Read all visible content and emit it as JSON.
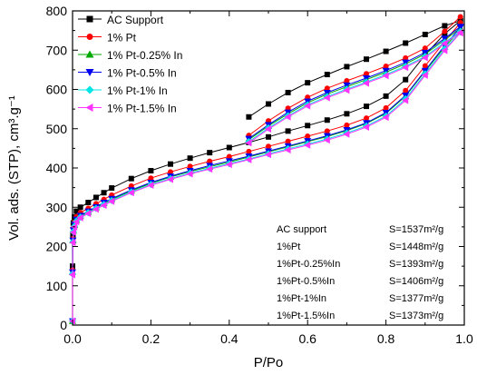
{
  "chart_data": {
    "type": "scatter",
    "xlabel": "P/Po",
    "ylabel": "Vol. ads. (STP), cm³.g⁻¹",
    "xlim": [
      0.0,
      1.0
    ],
    "ylim": [
      0,
      800
    ],
    "xticks": [
      "0.0",
      "0.2",
      "0.4",
      "0.6",
      "0.8",
      "1.0"
    ],
    "yticks": [
      "0",
      "100",
      "200",
      "300",
      "400",
      "500",
      "600",
      "700",
      "800"
    ],
    "grid": false,
    "legend_position": "top-left",
    "series": [
      {
        "name": "AC Support",
        "color": "#000000",
        "marker": "square",
        "adsorption": [
          [
            0.0,
            10
          ],
          [
            0.0,
            150
          ],
          [
            0.001,
            230
          ],
          [
            0.002,
            260
          ],
          [
            0.005,
            275
          ],
          [
            0.01,
            290
          ],
          [
            0.02,
            300
          ],
          [
            0.04,
            312
          ],
          [
            0.06,
            325
          ],
          [
            0.08,
            337
          ],
          [
            0.1,
            349
          ],
          [
            0.15,
            373
          ],
          [
            0.2,
            393
          ],
          [
            0.25,
            410
          ],
          [
            0.3,
            425
          ],
          [
            0.35,
            439
          ],
          [
            0.4,
            452
          ],
          [
            0.45,
            465
          ],
          [
            0.5,
            479
          ],
          [
            0.55,
            494
          ],
          [
            0.6,
            508
          ],
          [
            0.65,
            522
          ],
          [
            0.7,
            538
          ],
          [
            0.75,
            557
          ],
          [
            0.8,
            583
          ],
          [
            0.85,
            625
          ],
          [
            0.9,
            688
          ],
          [
            0.95,
            742
          ],
          [
            0.99,
            775
          ]
        ],
        "desorption": [
          [
            0.99,
            775
          ],
          [
            0.95,
            762
          ],
          [
            0.9,
            740
          ],
          [
            0.85,
            718
          ],
          [
            0.8,
            697
          ],
          [
            0.75,
            677
          ],
          [
            0.7,
            658
          ],
          [
            0.65,
            638
          ],
          [
            0.6,
            617
          ],
          [
            0.55,
            592
          ],
          [
            0.5,
            563
          ],
          [
            0.45,
            530
          ]
        ]
      },
      {
        "name": "1% Pt",
        "color": "#ff0000",
        "marker": "circle",
        "adsorption": [
          [
            0.0,
            10
          ],
          [
            0.0,
            140
          ],
          [
            0.001,
            220
          ],
          [
            0.002,
            248
          ],
          [
            0.005,
            262
          ],
          [
            0.01,
            276
          ],
          [
            0.02,
            286
          ],
          [
            0.04,
            297
          ],
          [
            0.06,
            309
          ],
          [
            0.08,
            320
          ],
          [
            0.1,
            331
          ],
          [
            0.15,
            354
          ],
          [
            0.2,
            374
          ],
          [
            0.25,
            390
          ],
          [
            0.3,
            404
          ],
          [
            0.35,
            417
          ],
          [
            0.4,
            429
          ],
          [
            0.45,
            442
          ],
          [
            0.5,
            455
          ],
          [
            0.55,
            468
          ],
          [
            0.6,
            481
          ],
          [
            0.65,
            494
          ],
          [
            0.7,
            509
          ],
          [
            0.75,
            527
          ],
          [
            0.8,
            553
          ],
          [
            0.85,
            597
          ],
          [
            0.9,
            660
          ],
          [
            0.95,
            722
          ],
          [
            0.99,
            770
          ]
        ],
        "desorption": [
          [
            0.99,
            785
          ],
          [
            0.95,
            748
          ],
          [
            0.9,
            705
          ],
          [
            0.85,
            680
          ],
          [
            0.8,
            659
          ],
          [
            0.75,
            640
          ],
          [
            0.7,
            622
          ],
          [
            0.65,
            603
          ],
          [
            0.6,
            580
          ],
          [
            0.55,
            552
          ],
          [
            0.5,
            520
          ],
          [
            0.45,
            483
          ]
        ]
      },
      {
        "name": "1% Pt-0.25% In",
        "color": "#00aa00",
        "marker": "triangle-up",
        "adsorption": [
          [
            0.0,
            10
          ],
          [
            0.0,
            135
          ],
          [
            0.001,
            215
          ],
          [
            0.002,
            240
          ],
          [
            0.005,
            254
          ],
          [
            0.01,
            267
          ],
          [
            0.02,
            277
          ],
          [
            0.04,
            288
          ],
          [
            0.06,
            299
          ],
          [
            0.08,
            310
          ],
          [
            0.1,
            320
          ],
          [
            0.15,
            342
          ],
          [
            0.2,
            361
          ],
          [
            0.25,
            377
          ],
          [
            0.3,
            391
          ],
          [
            0.35,
            403
          ],
          [
            0.4,
            415
          ],
          [
            0.45,
            428
          ],
          [
            0.5,
            441
          ],
          [
            0.55,
            454
          ],
          [
            0.6,
            467
          ],
          [
            0.65,
            480
          ],
          [
            0.7,
            495
          ],
          [
            0.75,
            513
          ],
          [
            0.8,
            539
          ],
          [
            0.85,
            583
          ],
          [
            0.9,
            646
          ],
          [
            0.95,
            708
          ],
          [
            0.99,
            752
          ]
        ],
        "desorption": [
          [
            0.99,
            756
          ],
          [
            0.95,
            726
          ],
          [
            0.9,
            690
          ],
          [
            0.85,
            665
          ],
          [
            0.8,
            644
          ],
          [
            0.75,
            625
          ],
          [
            0.7,
            607
          ],
          [
            0.65,
            588
          ],
          [
            0.6,
            566
          ],
          [
            0.55,
            538
          ],
          [
            0.5,
            507
          ],
          [
            0.45,
            472
          ]
        ]
      },
      {
        "name": "1% Pt-0.5% In",
        "color": "#0000ee",
        "marker": "triangle-down",
        "adsorption": [
          [
            0.0,
            10
          ],
          [
            0.0,
            135
          ],
          [
            0.001,
            216
          ],
          [
            0.002,
            242
          ],
          [
            0.005,
            256
          ],
          [
            0.01,
            269
          ],
          [
            0.02,
            279
          ],
          [
            0.04,
            290
          ],
          [
            0.06,
            301
          ],
          [
            0.08,
            312
          ],
          [
            0.1,
            322
          ],
          [
            0.15,
            344
          ],
          [
            0.2,
            363
          ],
          [
            0.25,
            379
          ],
          [
            0.3,
            393
          ],
          [
            0.35,
            406
          ],
          [
            0.4,
            418
          ],
          [
            0.45,
            430
          ],
          [
            0.5,
            443
          ],
          [
            0.55,
            456
          ],
          [
            0.6,
            469
          ],
          [
            0.65,
            482
          ],
          [
            0.7,
            497
          ],
          [
            0.75,
            515
          ],
          [
            0.8,
            541
          ],
          [
            0.85,
            585
          ],
          [
            0.9,
            648
          ],
          [
            0.95,
            712
          ],
          [
            0.99,
            758
          ]
        ],
        "desorption": [
          [
            0.99,
            760
          ],
          [
            0.95,
            730
          ],
          [
            0.9,
            694
          ],
          [
            0.85,
            669
          ],
          [
            0.8,
            648
          ],
          [
            0.75,
            629
          ],
          [
            0.7,
            611
          ],
          [
            0.65,
            592
          ],
          [
            0.6,
            570
          ],
          [
            0.55,
            542
          ],
          [
            0.5,
            510
          ],
          [
            0.45,
            475
          ]
        ]
      },
      {
        "name": "1% Pt-1% In",
        "color": "#00e5e5",
        "marker": "diamond",
        "adsorption": [
          [
            0.0,
            10
          ],
          [
            0.0,
            130
          ],
          [
            0.001,
            212
          ],
          [
            0.002,
            238
          ],
          [
            0.005,
            252
          ],
          [
            0.01,
            265
          ],
          [
            0.02,
            275
          ],
          [
            0.04,
            286
          ],
          [
            0.06,
            297
          ],
          [
            0.08,
            307
          ],
          [
            0.1,
            317
          ],
          [
            0.15,
            339
          ],
          [
            0.2,
            358
          ],
          [
            0.25,
            373
          ],
          [
            0.3,
            387
          ],
          [
            0.35,
            399
          ],
          [
            0.4,
            411
          ],
          [
            0.45,
            423
          ],
          [
            0.5,
            436
          ],
          [
            0.55,
            449
          ],
          [
            0.6,
            461
          ],
          [
            0.65,
            474
          ],
          [
            0.7,
            489
          ],
          [
            0.75,
            507
          ],
          [
            0.8,
            532
          ],
          [
            0.85,
            576
          ],
          [
            0.9,
            640
          ],
          [
            0.95,
            703
          ],
          [
            0.99,
            746
          ]
        ],
        "desorption": [
          [
            0.99,
            748
          ],
          [
            0.95,
            720
          ],
          [
            0.9,
            684
          ],
          [
            0.85,
            659
          ],
          [
            0.8,
            638
          ],
          [
            0.75,
            619
          ],
          [
            0.7,
            601
          ],
          [
            0.65,
            582
          ],
          [
            0.6,
            561
          ],
          [
            0.55,
            533
          ],
          [
            0.5,
            502
          ],
          [
            0.45,
            467
          ]
        ]
      },
      {
        "name": "1% Pt-1.5% In",
        "color": "#ff33ff",
        "marker": "triangle-left",
        "adsorption": [
          [
            0.0,
            10
          ],
          [
            0.0,
            128
          ],
          [
            0.001,
            210
          ],
          [
            0.002,
            236
          ],
          [
            0.005,
            250
          ],
          [
            0.01,
            263
          ],
          [
            0.02,
            273
          ],
          [
            0.04,
            284
          ],
          [
            0.06,
            295
          ],
          [
            0.08,
            305
          ],
          [
            0.1,
            315
          ],
          [
            0.15,
            337
          ],
          [
            0.2,
            356
          ],
          [
            0.25,
            371
          ],
          [
            0.3,
            385
          ],
          [
            0.35,
            397
          ],
          [
            0.4,
            409
          ],
          [
            0.45,
            421
          ],
          [
            0.5,
            434
          ],
          [
            0.55,
            446
          ],
          [
            0.6,
            458
          ],
          [
            0.65,
            471
          ],
          [
            0.7,
            486
          ],
          [
            0.75,
            504
          ],
          [
            0.8,
            529
          ],
          [
            0.85,
            572
          ],
          [
            0.9,
            636
          ],
          [
            0.95,
            699
          ],
          [
            0.99,
            744
          ]
        ],
        "desorption": [
          [
            0.99,
            745
          ],
          [
            0.95,
            717
          ],
          [
            0.9,
            681
          ],
          [
            0.85,
            656
          ],
          [
            0.8,
            635
          ],
          [
            0.75,
            616
          ],
          [
            0.7,
            598
          ],
          [
            0.65,
            579
          ],
          [
            0.6,
            558
          ],
          [
            0.55,
            530
          ],
          [
            0.5,
            499
          ],
          [
            0.45,
            464
          ]
        ]
      }
    ],
    "annotations": [
      {
        "label": "AC support",
        "value": "S=1537m²/g"
      },
      {
        "label": "1%Pt",
        "value": "S=1448m²/g"
      },
      {
        "label": "1%Pt-0.25%In",
        "value": "S=1393m²/g"
      },
      {
        "label": "1%Pt-0.5%In",
        "value": "S=1406m²/g"
      },
      {
        "label": "1%Pt-1%In",
        "value": "S=1377m²/g"
      },
      {
        "label": "1%Pt-1.5%In",
        "value": "S=1373m²/g"
      }
    ]
  }
}
